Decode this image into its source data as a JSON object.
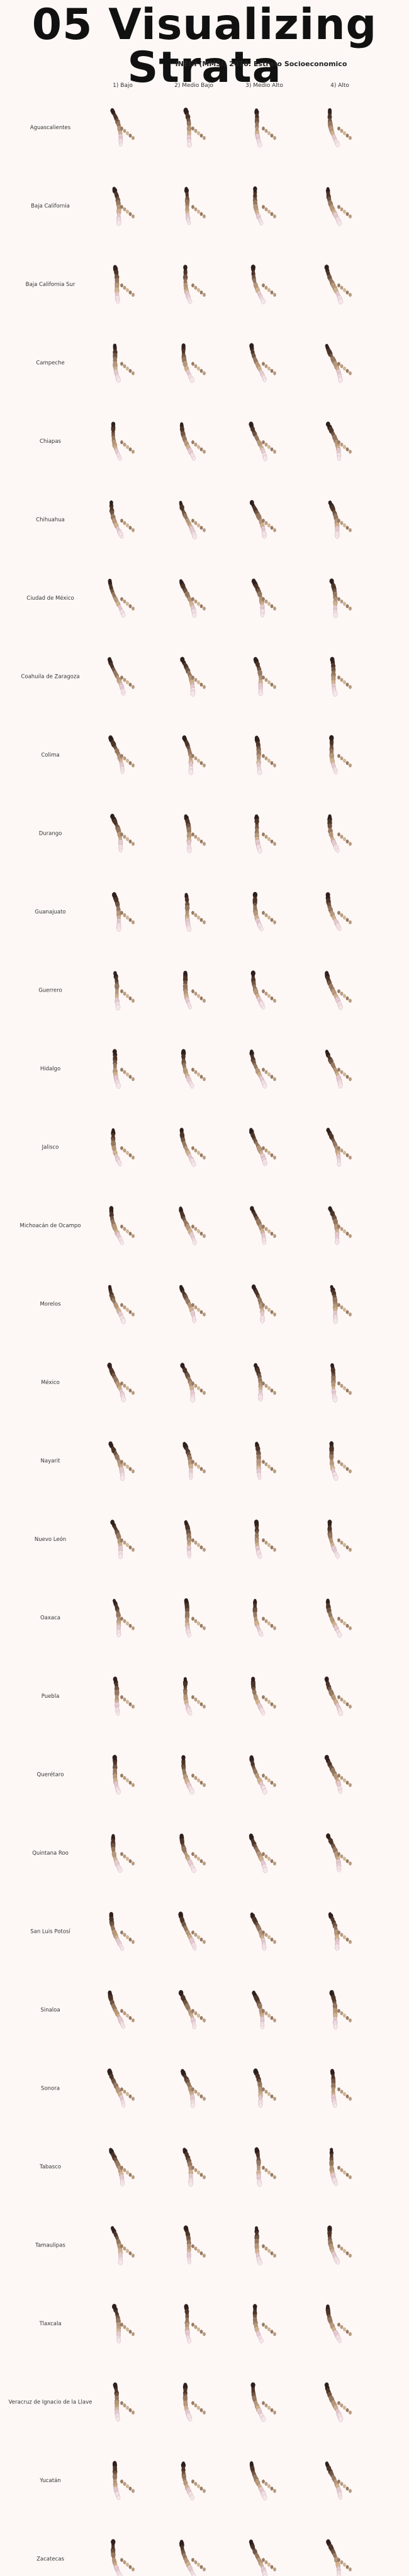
{
  "page": {
    "title": "05 Visualizing Strata"
  },
  "chart_data": {
    "type": "small-multiples",
    "title": "05 Visualizing Strata",
    "subtitle": "INEGI (MMSI) 2016: Estrato Socioeconomico",
    "columns": [
      "1) Bajo",
      "2) Medio Bajo",
      "3) Medio Alto",
      "4) Alto"
    ],
    "rows": [
      "Aguascalientes",
      "Baja California",
      "Baja California Sur",
      "Campeche",
      "Chiapas",
      "Chihuahua",
      "Ciudad de México",
      "Coahuila de Zaragoza",
      "Colima",
      "Durango",
      "Guanajuato",
      "Guerrero",
      "Hidalgo",
      "Jalisco",
      "Michoacán de Ocampo",
      "Morelos",
      "México",
      "Nayarit",
      "Nuevo León",
      "Oaxaca",
      "Puebla",
      "Querétaro",
      "Quintana Roo",
      "San Luis Potosí",
      "Sinaloa",
      "Sonora",
      "Tabasco",
      "Tamaulipas",
      "Tlaxcala",
      "Veracruz de Ignacio de la Llave",
      "Yucatán",
      "Zacatecas"
    ],
    "legend": "none",
    "grid": false,
    "colors": {
      "background": "#fdf8f6",
      "palette": [
        "#2b1f1a",
        "#4a3526",
        "#6f5643",
        "#967b60",
        "#b99c7c",
        "#d2b690",
        "#e8cfd6",
        "#f5e6ea"
      ]
    }
  }
}
